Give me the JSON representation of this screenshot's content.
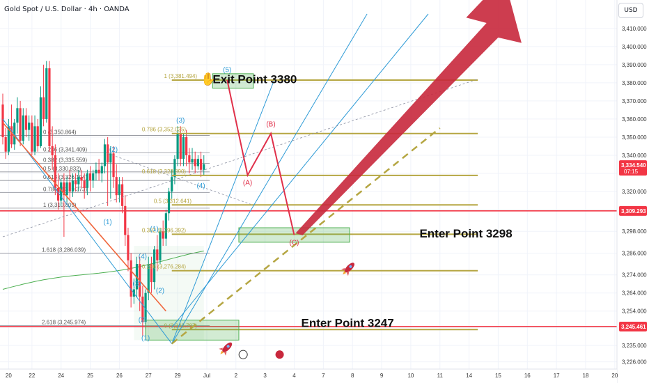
{
  "header": {
    "symbol_title": "Gold Spot / U.S. Dollar · 4h · OANDA"
  },
  "currency_button": "USD",
  "annotations": {
    "exit": "Exit Point 3380",
    "enter1": "Enter Point 3298",
    "enter2": "Enter Point 3247",
    "hand_emoji": "✋"
  },
  "price_tags": {
    "current": {
      "price": "3,334.540",
      "countdown": "07:15",
      "color": "#f23645"
    },
    "line1": {
      "price": "3,309.293",
      "color": "#f23645"
    },
    "line2": {
      "price": "3,245.461",
      "color": "#f23645"
    }
  },
  "colors": {
    "up": "#089981",
    "down": "#f23645",
    "fib": "#b5a642",
    "wave": "#2e9bd6",
    "projection": "#e0304a",
    "arrow": "#c8283c",
    "dashed": "#b5a642",
    "ma": "#4caf50"
  },
  "chart_data": {
    "type": "candlestick",
    "title": "Gold Spot / U.S. Dollar · 4h · OANDA",
    "y_axis": {
      "ylim": [
        3222,
        3418
      ],
      "ticks": [
        3226,
        3235,
        3245,
        3254,
        3264,
        3274,
        3286,
        3298,
        3310,
        3320,
        3330,
        3340,
        3350,
        3360,
        3370,
        3380,
        3390,
        3400,
        3410
      ],
      "tick_labels": [
        "3,226.000",
        "3,235.000",
        "",
        "3,254.000",
        "3,264.000",
        "3,274.000",
        "3,286.000",
        "3,298.000",
        "",
        "3,320.000",
        "",
        "3,340.000",
        "3,350.000",
        "3,360.000",
        "3,370.000",
        "3,380.000",
        "3,390.000",
        "3,400.000",
        "3,410.000"
      ]
    },
    "x_axis": {
      "ticks": [
        {
          "label": "20",
          "t": 2
        },
        {
          "label": "22",
          "t": 10
        },
        {
          "label": "24",
          "t": 20
        },
        {
          "label": "25",
          "t": 30
        },
        {
          "label": "26",
          "t": 40
        },
        {
          "label": "27",
          "t": 50
        },
        {
          "label": "29",
          "t": 60
        },
        {
          "label": "Jul",
          "t": 70
        },
        {
          "label": "2",
          "t": 80
        },
        {
          "label": "3",
          "t": 90
        },
        {
          "label": "4",
          "t": 100
        },
        {
          "label": "7",
          "t": 110
        },
        {
          "label": "8",
          "t": 120
        },
        {
          "label": "9",
          "t": 130
        },
        {
          "label": "10",
          "t": 140
        },
        {
          "label": "11",
          "t": 150
        },
        {
          "label": "14",
          "t": 160
        },
        {
          "label": "15",
          "t": 170
        },
        {
          "label": "16",
          "t": 180
        },
        {
          "label": "17",
          "t": 190
        },
        {
          "label": "18",
          "t": 200
        },
        {
          "label": "20",
          "t": 210
        }
      ]
    },
    "candles": [
      {
        "t": 0,
        "o": 3368,
        "h": 3374,
        "c": 3350,
        "l": 3346
      },
      {
        "t": 1,
        "o": 3350,
        "h": 3355,
        "c": 3342,
        "l": 3338
      },
      {
        "t": 2,
        "o": 3342,
        "h": 3360,
        "c": 3356,
        "l": 3340
      },
      {
        "t": 3,
        "o": 3356,
        "h": 3368,
        "c": 3346,
        "l": 3344
      },
      {
        "t": 4,
        "o": 3346,
        "h": 3360,
        "c": 3358,
        "l": 3343
      },
      {
        "t": 5,
        "o": 3358,
        "h": 3372,
        "c": 3366,
        "l": 3352
      },
      {
        "t": 6,
        "o": 3366,
        "h": 3370,
        "c": 3348,
        "l": 3345
      },
      {
        "t": 7,
        "o": 3348,
        "h": 3366,
        "c": 3362,
        "l": 3346
      },
      {
        "t": 8,
        "o": 3362,
        "h": 3366,
        "c": 3354,
        "l": 3350
      },
      {
        "t": 9,
        "o": 3354,
        "h": 3362,
        "c": 3358,
        "l": 3348
      },
      {
        "t": 10,
        "o": 3358,
        "h": 3362,
        "c": 3342,
        "l": 3340
      },
      {
        "t": 11,
        "o": 3342,
        "h": 3362,
        "c": 3356,
        "l": 3340
      },
      {
        "t": 12,
        "o": 3356,
        "h": 3360,
        "c": 3345,
        "l": 3342
      },
      {
        "t": 13,
        "o": 3345,
        "h": 3378,
        "c": 3372,
        "l": 3344
      },
      {
        "t": 14,
        "o": 3372,
        "h": 3390,
        "c": 3360,
        "l": 3356
      },
      {
        "t": 15,
        "o": 3360,
        "h": 3392,
        "c": 3388,
        "l": 3358
      },
      {
        "t": 16,
        "o": 3388,
        "h": 3392,
        "c": 3345,
        "l": 3342
      },
      {
        "t": 17,
        "o": 3345,
        "h": 3356,
        "c": 3340,
        "l": 3332
      },
      {
        "t": 18,
        "o": 3340,
        "h": 3346,
        "c": 3322,
        "l": 3318
      },
      {
        "t": 19,
        "o": 3322,
        "h": 3330,
        "c": 3315,
        "l": 3310
      },
      {
        "t": 20,
        "o": 3315,
        "h": 3327,
        "c": 3325,
        "l": 3312
      },
      {
        "t": 21,
        "o": 3325,
        "h": 3330,
        "c": 3318,
        "l": 3295
      },
      {
        "t": 22,
        "o": 3318,
        "h": 3328,
        "c": 3325,
        "l": 3314
      },
      {
        "t": 23,
        "o": 3325,
        "h": 3332,
        "c": 3320,
        "l": 3316
      },
      {
        "t": 24,
        "o": 3320,
        "h": 3330,
        "c": 3326,
        "l": 3317
      },
      {
        "t": 25,
        "o": 3326,
        "h": 3330,
        "c": 3324,
        "l": 3320
      },
      {
        "t": 26,
        "o": 3324,
        "h": 3332,
        "c": 3328,
        "l": 3320
      },
      {
        "t": 27,
        "o": 3328,
        "h": 3332,
        "c": 3326,
        "l": 3322
      },
      {
        "t": 28,
        "o": 3326,
        "h": 3330,
        "c": 3322,
        "l": 3316
      },
      {
        "t": 29,
        "o": 3322,
        "h": 3332,
        "c": 3330,
        "l": 3318
      },
      {
        "t": 30,
        "o": 3330,
        "h": 3334,
        "c": 3326,
        "l": 3320
      },
      {
        "t": 31,
        "o": 3326,
        "h": 3332,
        "c": 3330,
        "l": 3322
      },
      {
        "t": 32,
        "o": 3330,
        "h": 3336,
        "c": 3332,
        "l": 3326
      },
      {
        "t": 33,
        "o": 3332,
        "h": 3338,
        "c": 3330,
        "l": 3326
      },
      {
        "t": 34,
        "o": 3330,
        "h": 3336,
        "c": 3334,
        "l": 3325
      },
      {
        "t": 35,
        "o": 3334,
        "h": 3349,
        "c": 3346,
        "l": 3330
      },
      {
        "t": 36,
        "o": 3346,
        "h": 3350,
        "c": 3336,
        "l": 3312
      },
      {
        "t": 37,
        "o": 3336,
        "h": 3345,
        "c": 3341,
        "l": 3316
      },
      {
        "t": 38,
        "o": 3341,
        "h": 3345,
        "c": 3328,
        "l": 3322
      },
      {
        "t": 39,
        "o": 3328,
        "h": 3335,
        "c": 3318,
        "l": 3314
      },
      {
        "t": 40,
        "o": 3318,
        "h": 3328,
        "c": 3324,
        "l": 3314
      },
      {
        "t": 41,
        "o": 3324,
        "h": 3328,
        "c": 3312,
        "l": 3308
      },
      {
        "t": 42,
        "o": 3312,
        "h": 3318,
        "c": 3296,
        "l": 3290
      },
      {
        "t": 43,
        "o": 3296,
        "h": 3300,
        "c": 3282,
        "l": 3276
      },
      {
        "t": 44,
        "o": 3282,
        "h": 3286,
        "c": 3262,
        "l": 3256
      },
      {
        "t": 45,
        "o": 3262,
        "h": 3272,
        "c": 3266,
        "l": 3258
      },
      {
        "t": 46,
        "o": 3266,
        "h": 3284,
        "c": 3280,
        "l": 3262
      },
      {
        "t": 47,
        "o": 3280,
        "h": 3284,
        "c": 3262,
        "l": 3254
      },
      {
        "t": 48,
        "o": 3262,
        "h": 3268,
        "c": 3248,
        "l": 3240
      },
      {
        "t": 49,
        "o": 3248,
        "h": 3266,
        "c": 3264,
        "l": 3244
      },
      {
        "t": 50,
        "o": 3264,
        "h": 3284,
        "c": 3280,
        "l": 3260
      },
      {
        "t": 51,
        "o": 3280,
        "h": 3284,
        "c": 3270,
        "l": 3264
      },
      {
        "t": 52,
        "o": 3270,
        "h": 3290,
        "c": 3288,
        "l": 3266
      },
      {
        "t": 53,
        "o": 3288,
        "h": 3296,
        "c": 3282,
        "l": 3276
      },
      {
        "t": 54,
        "o": 3282,
        "h": 3300,
        "c": 3298,
        "l": 3280
      },
      {
        "t": 55,
        "o": 3298,
        "h": 3304,
        "c": 3294,
        "l": 3290
      },
      {
        "t": 56,
        "o": 3294,
        "h": 3310,
        "c": 3308,
        "l": 3290
      },
      {
        "t": 57,
        "o": 3308,
        "h": 3322,
        "c": 3320,
        "l": 3304
      },
      {
        "t": 58,
        "o": 3320,
        "h": 3332,
        "c": 3328,
        "l": 3316
      },
      {
        "t": 59,
        "o": 3328,
        "h": 3340,
        "c": 3338,
        "l": 3324
      },
      {
        "t": 60,
        "o": 3338,
        "h": 3356,
        "c": 3352,
        "l": 3334
      },
      {
        "t": 61,
        "o": 3352,
        "h": 3356,
        "c": 3338,
        "l": 3334
      },
      {
        "t": 62,
        "o": 3338,
        "h": 3352,
        "c": 3350,
        "l": 3334
      },
      {
        "t": 63,
        "o": 3350,
        "h": 3354,
        "c": 3340,
        "l": 3334
      },
      {
        "t": 64,
        "o": 3340,
        "h": 3344,
        "c": 3336,
        "l": 3330
      },
      {
        "t": 65,
        "o": 3336,
        "h": 3344,
        "c": 3338,
        "l": 3332
      },
      {
        "t": 66,
        "o": 3338,
        "h": 3342,
        "c": 3334,
        "l": 3330
      },
      {
        "t": 67,
        "o": 3334,
        "h": 3340,
        "c": 3338,
        "l": 3332
      },
      {
        "t": 68,
        "o": 3338,
        "h": 3342,
        "c": 3332,
        "l": 3328
      },
      {
        "t": 69,
        "o": 3332,
        "h": 3340,
        "c": 3335,
        "l": 3329
      }
    ],
    "fib_levels_left": [
      {
        "label": "0 (3,350.864)",
        "price": 3350.9
      },
      {
        "label": "0.236 (3,341.409)",
        "price": 3341.4
      },
      {
        "label": "0.382 (3,335.559)",
        "price": 3335.6
      },
      {
        "label": "0.5 (3,330.832)",
        "price": 3330.8
      },
      {
        "label": "0.618 (3,326.104)",
        "price": 3326.1
      },
      {
        "label": "0.786 (3,319.373)",
        "price": 3319.4
      },
      {
        "label": "1 (3,310.809)",
        "price": 3310.8
      },
      {
        "label": "1.618 (3,286.039)",
        "price": 3286.0
      },
      {
        "label": "2.618 (3,245.974)",
        "price": 3246.0
      }
    ],
    "fib_levels_right": [
      {
        "label": "1 (3,381.494)",
        "price": 3381.5
      },
      {
        "label": "0.786 (3,352.025)",
        "price": 3352.0
      },
      {
        "label": "0.618 (3,328.890)",
        "price": 3328.9
      },
      {
        "label": "0.5 (3,312.641)",
        "price": 3312.6
      },
      {
        "label": "0.382 (3,296.392)",
        "price": 3296.4
      },
      {
        "label": "0.236 (3,276.284)",
        "price": 3276.3
      },
      {
        "label": "0 (3,243.787)",
        "price": 3243.8
      }
    ],
    "wave_labels": [
      {
        "label": "(1)",
        "t": 36,
        "price": 3302
      },
      {
        "label": "(2)",
        "t": 38,
        "price": 3342
      },
      {
        "label": "(3)",
        "t": 61,
        "price": 3358
      },
      {
        "label": "(4)",
        "t": 68,
        "price": 3322
      },
      {
        "label": "(5)",
        "t": 77,
        "price": 3386
      },
      {
        "label": "(1)",
        "t": 52,
        "price": 3298
      },
      {
        "label": "(2)",
        "t": 54,
        "price": 3264
      },
      {
        "label": "(4)",
        "t": 48,
        "price": 3283
      },
      {
        "label": "(3)",
        "t": 46,
        "price": 3268
      },
      {
        "label": "(2)",
        "t": 48,
        "price": 3248
      },
      {
        "label": "(1)",
        "t": 49,
        "price": 3238
      }
    ],
    "projection_path": [
      {
        "t": 77,
        "price": 3381.5,
        "label": ""
      },
      {
        "t": 84,
        "price": 3329,
        "label": "(A)"
      },
      {
        "t": 92,
        "price": 3352,
        "label": "(B)"
      },
      {
        "t": 100,
        "price": 3296,
        "label": "(C)"
      }
    ],
    "zones": [
      {
        "t0": 72,
        "t1": 86,
        "p0": 3377,
        "p1": 3385
      },
      {
        "t0": 81,
        "t1": 119,
        "p0": 3292,
        "p1": 3300
      },
      {
        "t0": 49,
        "t1": 81,
        "p0": 3238,
        "p1": 3249
      }
    ]
  }
}
